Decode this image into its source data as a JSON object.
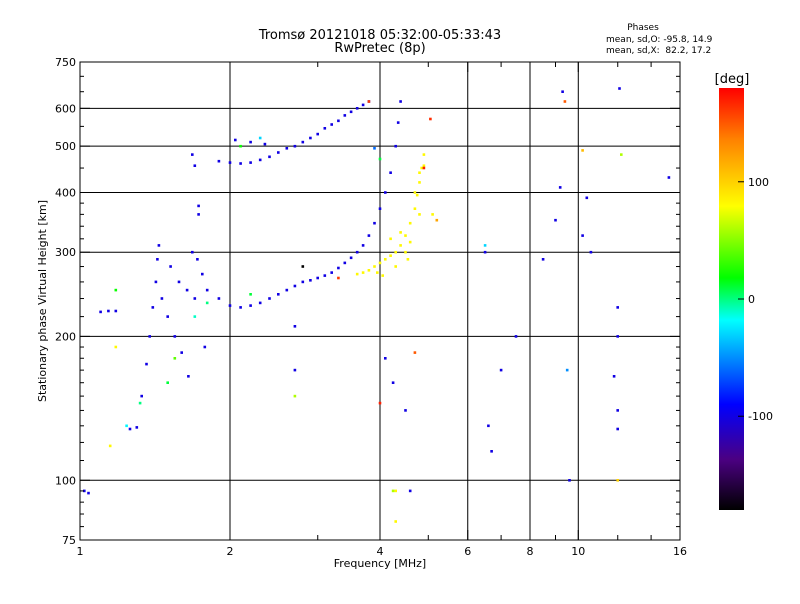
{
  "chart_data": {
    "type": "scatter",
    "title": "Tromsø 20121018 05:32:00-05:33:43",
    "subtitle": "RwPretec (8p)",
    "xlabel": "Frequency [MHz]",
    "ylabel": "Stationary phase Virtual Height [km]",
    "x_scale": "log",
    "y_scale": "log",
    "xlim": [
      1,
      16
    ],
    "ylim": [
      75,
      750
    ],
    "grid": true,
    "x_ticks": [
      1,
      2,
      4,
      6,
      8,
      10,
      16
    ],
    "x_tick_labels": [
      "1",
      "2",
      "4",
      "6",
      "8",
      "10",
      "16"
    ],
    "x_minor_ticks": [
      3,
      5,
      7,
      9,
      12,
      14
    ],
    "y_ticks": [
      75,
      100,
      200,
      300,
      400,
      500,
      600,
      750
    ],
    "y_tick_labels": [
      "75",
      "100",
      "200",
      "300",
      "400",
      "500",
      "600",
      "750"
    ],
    "x_gridlines": [
      2,
      4,
      6,
      8,
      10
    ],
    "y_gridlines": [
      100,
      200,
      300,
      400,
      500,
      600
    ],
    "phases_header": {
      "title": "Phases",
      "line1": "mean, sd,O: -95.8, 14.9",
      "line2": "mean, sd,X:  82.2, 17.2"
    },
    "colorbar": {
      "label": "[deg]",
      "range": [
        -180,
        180
      ],
      "ticks": [
        100,
        0,
        -100
      ],
      "tick_labels": [
        "100",
        "0",
        "-100"
      ]
    },
    "series": [
      {
        "mode": "O",
        "phase_deg": -100,
        "points": [
          [
            1.02,
            95
          ],
          [
            1.04,
            94
          ],
          [
            1.1,
            225
          ],
          [
            1.14,
            226
          ],
          [
            1.18,
            226
          ],
          [
            1.26,
            128
          ],
          [
            1.3,
            129
          ],
          [
            1.33,
            150
          ],
          [
            1.36,
            175
          ],
          [
            1.38,
            200
          ],
          [
            1.4,
            230
          ],
          [
            1.42,
            260
          ],
          [
            1.43,
            290
          ],
          [
            1.44,
            310
          ],
          [
            1.46,
            240
          ],
          [
            1.5,
            220
          ],
          [
            1.55,
            200
          ],
          [
            1.6,
            185
          ],
          [
            1.65,
            165
          ],
          [
            1.52,
            280
          ],
          [
            1.58,
            260
          ],
          [
            1.64,
            250
          ],
          [
            1.7,
            240
          ],
          [
            1.68,
            300
          ],
          [
            1.72,
            290
          ],
          [
            1.76,
            270
          ],
          [
            1.78,
            190
          ],
          [
            1.73,
            360
          ],
          [
            1.73,
            375
          ],
          [
            1.68,
            480
          ],
          [
            1.7,
            455
          ],
          [
            1.8,
            250
          ],
          [
            1.9,
            240
          ],
          [
            2.0,
            232
          ],
          [
            2.1,
            230
          ],
          [
            2.2,
            232
          ],
          [
            2.3,
            235
          ],
          [
            2.4,
            240
          ],
          [
            2.5,
            245
          ],
          [
            2.6,
            250
          ],
          [
            2.7,
            255
          ],
          [
            2.8,
            260
          ],
          [
            2.9,
            262
          ],
          [
            3.0,
            265
          ],
          [
            3.1,
            268
          ],
          [
            3.2,
            272
          ],
          [
            3.3,
            278
          ],
          [
            3.4,
            285
          ],
          [
            3.5,
            292
          ],
          [
            3.6,
            300
          ],
          [
            3.7,
            310
          ],
          [
            3.8,
            325
          ],
          [
            3.9,
            345
          ],
          [
            4.0,
            370
          ],
          [
            4.1,
            400
          ],
          [
            4.2,
            440
          ],
          [
            4.3,
            500
          ],
          [
            4.35,
            560
          ],
          [
            4.4,
            620
          ],
          [
            1.9,
            465
          ],
          [
            2.0,
            462
          ],
          [
            2.1,
            460
          ],
          [
            2.2,
            462
          ],
          [
            2.3,
            468
          ],
          [
            2.4,
            475
          ],
          [
            2.5,
            485
          ],
          [
            2.6,
            495
          ],
          [
            2.7,
            500
          ],
          [
            2.8,
            510
          ],
          [
            2.9,
            520
          ],
          [
            3.0,
            530
          ],
          [
            3.1,
            545
          ],
          [
            3.2,
            555
          ],
          [
            3.3,
            565
          ],
          [
            3.4,
            580
          ],
          [
            3.5,
            590
          ],
          [
            3.6,
            600
          ],
          [
            3.7,
            610
          ],
          [
            3.8,
            620
          ],
          [
            2.05,
            515
          ],
          [
            2.2,
            510
          ],
          [
            2.35,
            505
          ],
          [
            4.1,
            180
          ],
          [
            4.25,
            160
          ],
          [
            4.5,
            140
          ],
          [
            4.6,
            95
          ],
          [
            6.5,
            300
          ],
          [
            6.6,
            130
          ],
          [
            6.7,
            115
          ],
          [
            7.0,
            170
          ],
          [
            7.5,
            200
          ],
          [
            8.5,
            290
          ],
          [
            9.0,
            350
          ],
          [
            9.2,
            410
          ],
          [
            9.3,
            650
          ],
          [
            9.6,
            100
          ],
          [
            10.2,
            325
          ],
          [
            10.4,
            390
          ],
          [
            10.6,
            300
          ],
          [
            12.0,
            230
          ],
          [
            12.0,
            200
          ],
          [
            12.0,
            128
          ],
          [
            12.0,
            140
          ],
          [
            11.8,
            165
          ],
          [
            12.1,
            660
          ],
          [
            15.2,
            430
          ],
          [
            2.7,
            210
          ],
          [
            2.7,
            170
          ]
        ]
      },
      {
        "mode": "X",
        "phase_deg": 82,
        "points": [
          [
            3.6,
            270
          ],
          [
            3.7,
            272
          ],
          [
            3.8,
            275
          ],
          [
            3.9,
            280
          ],
          [
            4.0,
            285
          ],
          [
            4.1,
            290
          ],
          [
            4.2,
            295
          ],
          [
            4.3,
            300
          ],
          [
            4.4,
            310
          ],
          [
            4.5,
            325
          ],
          [
            4.6,
            345
          ],
          [
            4.7,
            370
          ],
          [
            4.75,
            395
          ],
          [
            4.8,
            420
          ],
          [
            4.85,
            450
          ],
          [
            4.9,
            480
          ],
          [
            4.3,
            280
          ],
          [
            4.5,
            300
          ],
          [
            4.6,
            315
          ],
          [
            4.4,
            330
          ],
          [
            4.2,
            320
          ],
          [
            4.7,
            400
          ],
          [
            4.8,
            360
          ],
          [
            4.55,
            290
          ],
          [
            3.95,
            272
          ],
          [
            4.05,
            268
          ],
          [
            4.8,
            440
          ],
          [
            4.9,
            455
          ],
          [
            4.3,
            95
          ],
          [
            4.3,
            82
          ],
          [
            1.15,
            118
          ],
          [
            1.18,
            190
          ],
          [
            5.1,
            360
          ]
        ]
      },
      {
        "mode": "other",
        "points": [
          [
            1.18,
            250,
            20
          ],
          [
            1.24,
            130,
            -20
          ],
          [
            1.32,
            145,
            0
          ],
          [
            1.5,
            160,
            10
          ],
          [
            1.55,
            180,
            40
          ],
          [
            1.7,
            220,
            -10
          ],
          [
            1.8,
            235,
            0
          ],
          [
            2.2,
            245,
            10
          ],
          [
            2.7,
            150,
            60
          ],
          [
            2.8,
            280,
            -200
          ],
          [
            3.3,
            265,
            160
          ],
          [
            3.8,
            620,
            160
          ],
          [
            4.0,
            145,
            170
          ],
          [
            4.25,
            95,
            60
          ],
          [
            4.7,
            185,
            150
          ],
          [
            4.9,
            450,
            170
          ],
          [
            5.05,
            570,
            165
          ],
          [
            6.5,
            310,
            -30
          ],
          [
            9.4,
            620,
            150
          ],
          [
            9.5,
            170,
            -50
          ],
          [
            10.2,
            490,
            110
          ],
          [
            12.2,
            480,
            60
          ],
          [
            12.0,
            100,
            100
          ],
          [
            2.3,
            520,
            -30
          ],
          [
            2.1,
            500,
            20
          ],
          [
            3.9,
            495,
            -60
          ],
          [
            4.0,
            470,
            10
          ],
          [
            5.2,
            350,
            120
          ]
        ]
      }
    ]
  }
}
